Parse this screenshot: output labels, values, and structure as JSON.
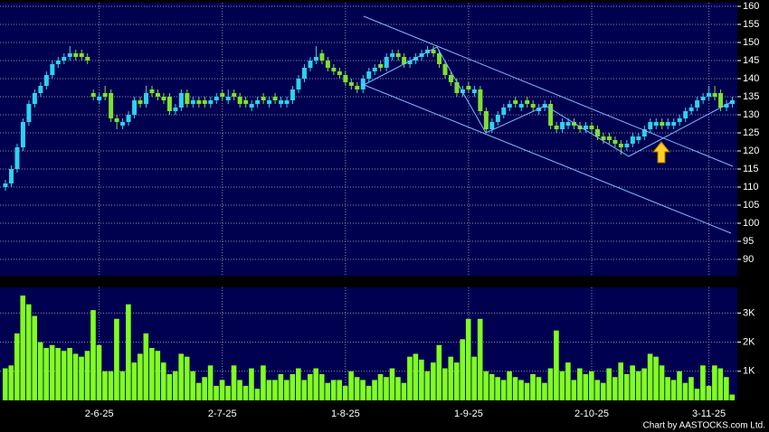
{
  "chart_data": [
    {
      "type": "candlestick",
      "up_color": "#30d0f0",
      "down_color": "#80e030",
      "grid": true,
      "ylim": [
        85.5,
        161
      ],
      "yticks": [
        90,
        95,
        100,
        105,
        110,
        115,
        120,
        125,
        130,
        135,
        140,
        145,
        150,
        155,
        160
      ],
      "open": [
        110,
        111,
        115,
        121,
        128,
        133,
        136,
        138,
        141,
        144,
        145,
        146,
        147,
        147,
        146,
        136,
        134,
        136,
        136,
        129,
        127,
        128,
        130,
        134,
        133,
        137,
        136,
        135,
        135,
        131,
        132,
        136,
        133,
        134,
        134,
        133,
        134,
        136,
        134,
        136,
        135,
        134,
        132,
        133,
        135,
        133,
        135,
        133,
        133,
        134,
        137,
        140,
        143,
        145,
        147,
        145,
        143,
        142,
        141,
        139,
        138,
        137,
        140,
        142,
        144,
        143,
        146,
        147,
        146,
        144,
        145,
        146,
        147,
        148,
        147,
        144,
        141,
        139,
        136,
        138,
        136,
        137,
        131,
        126,
        128,
        130,
        132,
        134,
        132,
        134,
        133,
        131,
        132,
        133,
        127,
        126,
        127,
        128,
        127,
        126,
        127,
        126,
        124,
        124,
        123,
        122,
        121,
        122,
        123,
        124,
        126,
        127,
        128,
        127,
        127,
        128,
        129,
        131,
        132,
        134,
        135,
        136,
        136,
        132,
        133
      ],
      "high": [
        112,
        116,
        122,
        129,
        134,
        137,
        139,
        142,
        145,
        146,
        147,
        149,
        148,
        148,
        147,
        137,
        136,
        138,
        137,
        130,
        129,
        131,
        135,
        135,
        138,
        138,
        137,
        136,
        136,
        133,
        137,
        137,
        135,
        135,
        135,
        135,
        136,
        137,
        137,
        137,
        136,
        135,
        134,
        135,
        136,
        135,
        136,
        135,
        135,
        138,
        141,
        144,
        146,
        149,
        148,
        146,
        144,
        143,
        142,
        140,
        139,
        141,
        143,
        144,
        145,
        147,
        148,
        148,
        147,
        146,
        147,
        148,
        149,
        149,
        148,
        145,
        142,
        140,
        138,
        139,
        138,
        138,
        132,
        129,
        131,
        133,
        134,
        135,
        134,
        135,
        134,
        133,
        134,
        134,
        128,
        129,
        129,
        129,
        128,
        128,
        128,
        127,
        125,
        125,
        124,
        123,
        123,
        125,
        125,
        127,
        129,
        129,
        129,
        129,
        129,
        130,
        132,
        133,
        135,
        136,
        138,
        138,
        137,
        134,
        135
      ],
      "low": [
        109,
        110,
        114,
        120,
        127,
        132,
        135,
        137,
        140,
        143,
        144,
        145,
        145,
        145,
        144,
        134,
        133,
        134,
        128,
        126,
        126,
        127,
        129,
        132,
        132,
        135,
        134,
        133,
        130,
        130,
        131,
        132,
        132,
        132,
        132,
        132,
        133,
        134,
        133,
        134,
        132,
        132,
        131,
        132,
        133,
        132,
        133,
        132,
        132,
        133,
        136,
        139,
        142,
        144,
        144,
        142,
        141,
        140,
        138,
        137,
        136,
        136,
        139,
        141,
        142,
        142,
        145,
        145,
        143,
        143,
        144,
        145,
        146,
        146,
        143,
        140,
        138,
        135,
        135,
        136,
        135,
        130,
        125,
        125,
        127,
        129,
        131,
        132,
        131,
        132,
        131,
        130,
        131,
        126,
        125,
        125,
        126,
        126,
        125,
        125,
        125,
        123,
        122,
        122,
        121,
        119,
        120,
        121,
        122,
        123,
        125,
        126,
        126,
        126,
        126,
        127,
        128,
        130,
        131,
        133,
        134,
        134,
        131,
        131,
        132
      ],
      "close": [
        111,
        115,
        121,
        128,
        133,
        136,
        138,
        141,
        144,
        145,
        146,
        147,
        146,
        146,
        145,
        135,
        135,
        135,
        129,
        128,
        128,
        130,
        134,
        133,
        136,
        136,
        135,
        134,
        131,
        132,
        136,
        133,
        134,
        133,
        133,
        134,
        135,
        135,
        135,
        135,
        133,
        133,
        133,
        134,
        134,
        134,
        134,
        134,
        134,
        137,
        140,
        143,
        145,
        146,
        145,
        143,
        142,
        141,
        139,
        138,
        137,
        140,
        142,
        143,
        143,
        146,
        147,
        146,
        144,
        145,
        146,
        147,
        148,
        147,
        144,
        141,
        139,
        136,
        137,
        137,
        137,
        131,
        126,
        128,
        130,
        132,
        133,
        133,
        133,
        133,
        132,
        132,
        133,
        127,
        126,
        128,
        128,
        127,
        126,
        127,
        126,
        124,
        123,
        123,
        122,
        121,
        122,
        124,
        124,
        126,
        128,
        128,
        127,
        128,
        128,
        129,
        131,
        132,
        134,
        135,
        136,
        135,
        132,
        133,
        134
      ]
    },
    {
      "type": "bar",
      "color": "#80ff20",
      "grid": true,
      "ylim": [
        0,
        3880
      ],
      "yticks": [
        {
          "value": 1000,
          "label": "1K"
        },
        {
          "value": 2000,
          "label": "2K"
        },
        {
          "value": 3000,
          "label": "3K"
        }
      ],
      "categories": [
        null,
        null,
        null,
        null,
        null,
        null,
        null,
        null,
        null,
        null,
        null,
        null,
        null,
        null,
        null,
        null,
        "2-6-25",
        null,
        null,
        null,
        null,
        null,
        null,
        null,
        null,
        null,
        null,
        null,
        null,
        null,
        null,
        null,
        null,
        null,
        null,
        null,
        null,
        "2-7-25",
        null,
        null,
        null,
        null,
        null,
        null,
        null,
        null,
        null,
        null,
        null,
        null,
        null,
        null,
        null,
        null,
        null,
        null,
        null,
        null,
        "1-8-25",
        null,
        null,
        null,
        null,
        null,
        null,
        null,
        null,
        null,
        null,
        null,
        null,
        null,
        null,
        null,
        null,
        null,
        null,
        null,
        null,
        "1-9-25",
        null,
        null,
        null,
        null,
        null,
        null,
        null,
        null,
        null,
        null,
        null,
        null,
        null,
        null,
        null,
        null,
        null,
        null,
        null,
        null,
        "2-10-25",
        null,
        null,
        null,
        null,
        null,
        null,
        null,
        null,
        null,
        null,
        null,
        null,
        null,
        null,
        null,
        null,
        null,
        null,
        null,
        "3-11-25",
        null,
        null,
        null,
        null
      ],
      "values": [
        1100,
        1200,
        2300,
        3600,
        3300,
        2900,
        2000,
        1800,
        1900,
        1800,
        1700,
        1800,
        1600,
        1500,
        1700,
        3100,
        1900,
        1000,
        1000,
        2800,
        1000,
        3300,
        1300,
        1600,
        2300,
        1800,
        1700,
        1300,
        900,
        1000,
        1600,
        1500,
        1000,
        600,
        800,
        1200,
        500,
        700,
        500,
        1200,
        700,
        500,
        1100,
        400,
        1200,
        700,
        700,
        900,
        700,
        900,
        1100,
        700,
        900,
        1100,
        900,
        600,
        700,
        700,
        500,
        1000,
        800,
        700,
        500,
        700,
        900,
        800,
        1100,
        800,
        600,
        1500,
        1600,
        1400,
        1000,
        1300,
        1900,
        1100,
        1500,
        1300,
        2100,
        2800,
        1500,
        2800,
        1000,
        900,
        800,
        700,
        1000,
        800,
        700,
        600,
        900,
        800,
        600,
        1100,
        2400,
        1000,
        1300,
        700,
        1100,
        900,
        1000,
        700,
        600,
        1100,
        800,
        1300,
        900,
        1200,
        1000,
        1100,
        1600,
        1500,
        1200,
        800,
        700,
        1000,
        600,
        800,
        400,
        1200,
        500,
        1200,
        1100,
        800,
        200
      ]
    }
  ],
  "credit": "Chart by AASTOCKS.com Ltd."
}
